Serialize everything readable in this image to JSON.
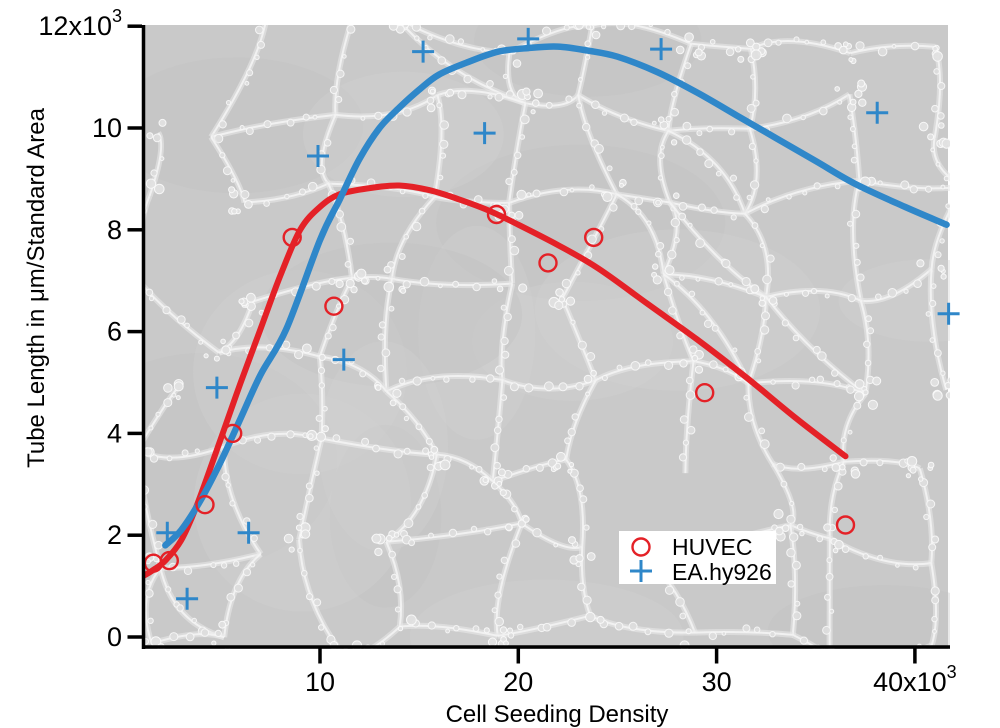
{
  "figure": {
    "background_description": "grayscale phase-contrast microscopy image of an endothelial tube network (polygonal gray cell areas bounded by bright beaded cell ridges)",
    "background_base_color": "#c9c9c9",
    "text_color": "#000000"
  },
  "legend": {
    "items": [
      {
        "label": "HUVEC",
        "marker": "circle",
        "color": "#e42127"
      },
      {
        "label": "EA.hy926",
        "marker": "plus",
        "color": "#2f87c9"
      }
    ]
  },
  "chart_data": {
    "type": "scatter",
    "title": "",
    "xlabel": "Cell Seeding Density",
    "ylabel": "Tube Length in μm/Standard Area",
    "xlim": [
      1,
      41.8
    ],
    "ylim": [
      0,
      12.2
    ],
    "units_note": "both axes shown in thousands (x10^3)",
    "grid": false,
    "legend_position": "inside lower-right",
    "xticks": [
      {
        "value": 10,
        "label": "10"
      },
      {
        "value": 20,
        "label": "20"
      },
      {
        "value": 30,
        "label": "30"
      },
      {
        "value": 40,
        "label": "40x10",
        "exp": "3"
      }
    ],
    "yticks": [
      {
        "value": 0,
        "label": "0"
      },
      {
        "value": 2,
        "label": "2"
      },
      {
        "value": 4,
        "label": "4"
      },
      {
        "value": 6,
        "label": "6"
      },
      {
        "value": 8,
        "label": "8"
      },
      {
        "value": 10,
        "label": "10"
      },
      {
        "value": 12,
        "label": "12x10",
        "exp": "3"
      }
    ],
    "series": [
      {
        "name": "HUVEC",
        "marker": "circle",
        "color": "#e42127",
        "points": [
          [
            1.6,
            1.45
          ],
          [
            2.4,
            1.5
          ],
          [
            4.2,
            2.6
          ],
          [
            5.6,
            4.0
          ],
          [
            8.6,
            7.85
          ],
          [
            10.7,
            6.5
          ],
          [
            18.9,
            8.3
          ],
          [
            21.5,
            7.35
          ],
          [
            23.8,
            7.85
          ],
          [
            29.4,
            4.8
          ],
          [
            36.5,
            2.2
          ]
        ],
        "fit_curve": [
          [
            1.1,
            1.2
          ],
          [
            1.6,
            1.32
          ],
          [
            2.2,
            1.5
          ],
          [
            3,
            1.9
          ],
          [
            3.8,
            2.6
          ],
          [
            5,
            3.9
          ],
          [
            6,
            5.0
          ],
          [
            7,
            6.05
          ],
          [
            8,
            7.1
          ],
          [
            9,
            8.0
          ],
          [
            10,
            8.45
          ],
          [
            11,
            8.7
          ],
          [
            12.5,
            8.82
          ],
          [
            14,
            8.87
          ],
          [
            15.5,
            8.78
          ],
          [
            17,
            8.6
          ],
          [
            18.5,
            8.38
          ],
          [
            20,
            8.1
          ],
          [
            22,
            7.7
          ],
          [
            24,
            7.25
          ],
          [
            26.5,
            6.55
          ],
          [
            29,
            5.85
          ],
          [
            31.5,
            5.1
          ],
          [
            34,
            4.3
          ],
          [
            36.5,
            3.55
          ]
        ]
      },
      {
        "name": "EA.hy926",
        "marker": "plus",
        "color": "#2f87c9",
        "points": [
          [
            2.3,
            2.05
          ],
          [
            3.3,
            0.75
          ],
          [
            4.8,
            4.9
          ],
          [
            6.4,
            2.05
          ],
          [
            9.9,
            9.45
          ],
          [
            11.2,
            5.45
          ],
          [
            15.2,
            11.5
          ],
          [
            18.3,
            9.9
          ],
          [
            20.5,
            11.75
          ],
          [
            27.2,
            11.55
          ],
          [
            38.1,
            10.3
          ],
          [
            41.7,
            6.35
          ]
        ],
        "fit_curve": [
          [
            2.2,
            1.8
          ],
          [
            3,
            2.1
          ],
          [
            4,
            2.7
          ],
          [
            5,
            3.45
          ],
          [
            6,
            4.3
          ],
          [
            7,
            5.15
          ],
          [
            8.3,
            6.05
          ],
          [
            10,
            7.8
          ],
          [
            11,
            8.6
          ],
          [
            12,
            9.4
          ],
          [
            13,
            10.0
          ],
          [
            14,
            10.4
          ],
          [
            15,
            10.75
          ],
          [
            16,
            11.05
          ],
          [
            17.5,
            11.3
          ],
          [
            19,
            11.5
          ],
          [
            20.5,
            11.57
          ],
          [
            22,
            11.6
          ],
          [
            23.5,
            11.52
          ],
          [
            25,
            11.4
          ],
          [
            27,
            11.1
          ],
          [
            29,
            10.7
          ],
          [
            31,
            10.25
          ],
          [
            33,
            9.8
          ],
          [
            35,
            9.35
          ],
          [
            37,
            8.9
          ],
          [
            39.5,
            8.45
          ],
          [
            41.6,
            8.1
          ]
        ]
      }
    ]
  }
}
